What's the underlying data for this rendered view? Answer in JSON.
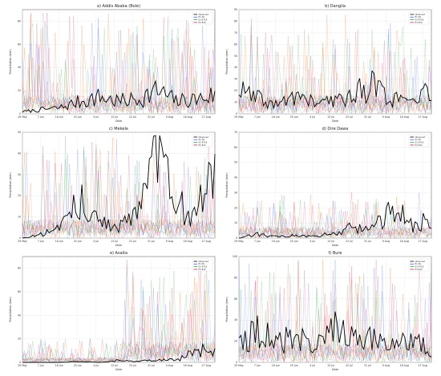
{
  "figure": {
    "xlabel": "Date",
    "ylabel": "Precipitation (mm)",
    "x_ticks": [
      "29 May",
      "7 Jun",
      "16 Jun",
      "25 Jun",
      "4 Jul",
      "13 Jul",
      "22 Jul",
      "31 Jul",
      "9 Aug",
      "18 Aug",
      "27 Aug"
    ],
    "legend": [
      "Observed",
      "E1-SS",
      "E3-E718",
      "E3-E12"
    ],
    "colors": {
      "observed": "#000000",
      "e1": "#3b5bdb",
      "e3a": "#2f9e44",
      "e3b": "#e8590c",
      "e3c": "#c2255c"
    }
  },
  "chart_data": [
    {
      "type": "line",
      "title": "a) Addis Ababa (Bole)",
      "ylim": [
        0,
        90
      ],
      "yticks": [
        0,
        20,
        40,
        60,
        80
      ],
      "legend_pos": "top-right",
      "x": [
        "29 May",
        "7 Jun",
        "16 Jun",
        "25 Jun",
        "4 Jul",
        "13 Jul",
        "22 Jul",
        "31 Jul",
        "9 Aug",
        "18 Aug",
        "27 Aug"
      ],
      "series": [
        {
          "name": "Observed",
          "values": [
            2,
            4,
            6,
            12,
            16,
            12,
            14,
            22,
            12,
            14,
            18
          ]
        }
      ]
    },
    {
      "type": "line",
      "title": "b) Dangila",
      "ylim": [
        0,
        90
      ],
      "yticks": [
        0,
        10,
        20,
        30,
        40,
        50,
        60,
        70,
        80,
        90
      ],
      "legend_pos": "top-right",
      "x": [
        "29 May",
        "7 Jun",
        "16 Jun",
        "25 Jun",
        "4 Jul",
        "13 Jul",
        "22 Jul",
        "31 Jul",
        "9 Aug",
        "18 Aug",
        "27 Aug"
      ],
      "series": [
        {
          "name": "Observed",
          "values": [
            22,
            14,
            8,
            18,
            10,
            12,
            20,
            28,
            14,
            10,
            22
          ]
        }
      ]
    },
    {
      "type": "line",
      "title": "c) Mekele",
      "ylim": [
        0,
        50
      ],
      "yticks": [
        0,
        10,
        20,
        30,
        40,
        50
      ],
      "legend_pos": "top-right",
      "x": [
        "29 May",
        "7 Jun",
        "16 Jun",
        "25 Jun",
        "4 Jul",
        "13 Jul",
        "22 Jul",
        "31 Jul",
        "9 Aug",
        "18 Aug",
        "27 Aug"
      ],
      "series": [
        {
          "name": "Observed",
          "values": [
            0,
            2,
            5,
            20,
            8,
            6,
            12,
            40,
            18,
            12,
            38
          ]
        }
      ]
    },
    {
      "type": "line",
      "title": "d) Dire Dawa",
      "ylim": [
        0,
        70
      ],
      "yticks": [
        0,
        10,
        20,
        30,
        40,
        50,
        60,
        70
      ],
      "legend_pos": "top-right",
      "x": [
        "29 May",
        "7 Jun",
        "16 Jun",
        "25 Jun",
        "4 Jul",
        "13 Jul",
        "22 Jul",
        "31 Jul",
        "9 Aug",
        "18 Aug",
        "27 Aug"
      ],
      "series": [
        {
          "name": "Observed",
          "values": [
            0,
            3,
            1,
            2,
            1,
            4,
            8,
            6,
            26,
            10,
            14
          ]
        }
      ]
    },
    {
      "type": "line",
      "title": "e) Asaita",
      "ylim": [
        0,
        90
      ],
      "yticks": [
        0,
        20,
        40,
        60,
        80
      ],
      "legend_pos": "top-right",
      "x": [
        "29 May",
        "7 Jun",
        "16 Jun",
        "25 Jun",
        "4 Jul",
        "13 Jul",
        "22 Jul",
        "31 Jul",
        "9 Aug",
        "18 Aug",
        "27 Aug"
      ],
      "series": [
        {
          "name": "Observed",
          "values": [
            0,
            0,
            0,
            1,
            0,
            2,
            1,
            3,
            2,
            10,
            12
          ]
        }
      ]
    },
    {
      "type": "line",
      "title": "f) Bure",
      "ylim": [
        0,
        100
      ],
      "yticks": [
        0,
        20,
        40,
        60,
        80,
        100
      ],
      "legend_pos": "top-right",
      "x": [
        "29 May",
        "7 Jun",
        "16 Jun",
        "25 Jun",
        "4 Jul",
        "13 Jul",
        "22 Jul",
        "31 Jul",
        "9 Aug",
        "18 Aug",
        "27 Aug"
      ],
      "series": [
        {
          "name": "Observed",
          "values": [
            18,
            34,
            20,
            28,
            16,
            40,
            22,
            30,
            18,
            24,
            12
          ]
        }
      ]
    }
  ]
}
